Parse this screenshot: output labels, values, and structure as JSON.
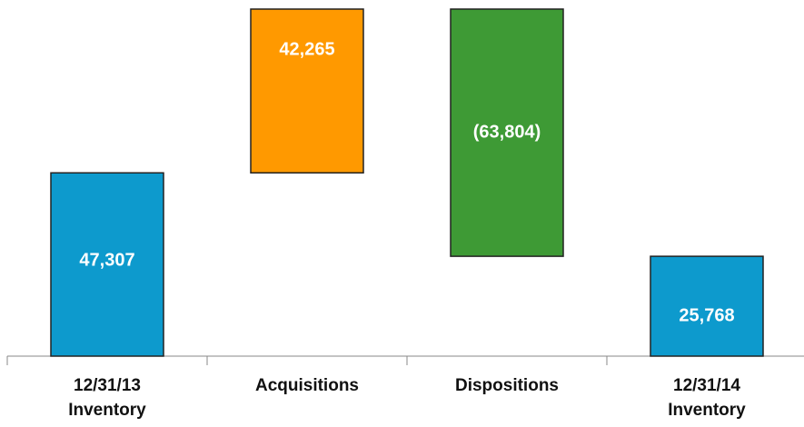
{
  "chart_data": {
    "type": "waterfall",
    "categories": [
      [
        "12/31/13",
        "Inventory"
      ],
      [
        "Acquisitions"
      ],
      [
        "Dispositions"
      ],
      [
        "12/31/14",
        "Inventory"
      ]
    ],
    "values": [
      47307,
      42265,
      -63804,
      25768
    ],
    "value_labels": [
      "47,307",
      "42,265",
      "(63,804)",
      "25,768"
    ],
    "measures": [
      "absolute",
      "relative",
      "relative",
      "absolute"
    ],
    "colors": [
      "#0d9acd",
      "#ff9900",
      "#3e9a35",
      "#0d9acd"
    ]
  }
}
